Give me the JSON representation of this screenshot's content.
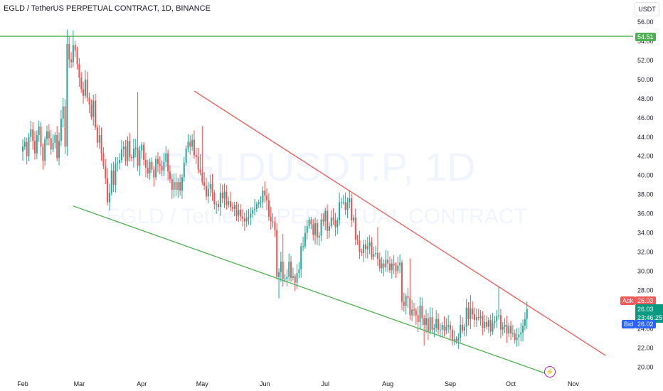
{
  "header": {
    "title": "EGLD / TetherUS PERPETUAL CONTRACT, 1D, BINANCE",
    "currency_button": "USDT"
  },
  "watermark": {
    "symbol": "EGLDUSDT.P, 1D",
    "name": "EGLD / TetherUS PERPETUAL CONTRACT"
  },
  "price_tags": {
    "level": "54.51",
    "ask_label": "Ask",
    "ask_value": "26.03",
    "last_value": "26.03",
    "countdown": "23:46:25",
    "bid_label": "Bid",
    "bid_value": "26.02"
  },
  "colors": {
    "up": "#26a69a",
    "down": "#ef5350",
    "support": "#4caf50",
    "resistance": "#f05a5a",
    "level_line": "#4caf50",
    "bid": "#2962ff",
    "last": "#089981"
  },
  "icons": {
    "alert": "lightning-icon"
  },
  "chart_data": {
    "type": "candlestick",
    "title": "EGLD / TetherUS PERPETUAL CONTRACT, 1D, BINANCE",
    "ylim": [
      19.5,
      57.0
    ],
    "y_ticks": [
      "56.00",
      "54.00",
      "52.00",
      "50.00",
      "48.00",
      "46.00",
      "44.00",
      "42.00",
      "40.00",
      "38.00",
      "36.00",
      "34.00",
      "32.00",
      "30.00",
      "28.00",
      "26.00",
      "24.00",
      "22.00",
      "20.00"
    ],
    "x_ticks": [
      {
        "label": "Feb",
        "day": 0
      },
      {
        "label": "Mar",
        "day": 28
      },
      {
        "label": "Apr",
        "day": 59
      },
      {
        "label": "May",
        "day": 89
      },
      {
        "label": "Jun",
        "day": 120
      },
      {
        "label": "Jul",
        "day": 150
      },
      {
        "label": "Aug",
        "day": 181
      },
      {
        "label": "Sep",
        "day": 212
      },
      {
        "label": "Oct",
        "day": 242
      },
      {
        "label": "Nov",
        "day": 273
      }
    ],
    "horizontal_level": 54.51,
    "trendlines": [
      {
        "name": "resistance",
        "from": {
          "day": 85,
          "price": 48.8
        },
        "to": {
          "day": 289,
          "price": 21.2
        }
      },
      {
        "name": "support",
        "from": {
          "day": 25,
          "price": 36.8
        },
        "to": {
          "day": 261,
          "price": 19.2
        }
      }
    ],
    "last_price": 26.03,
    "closes": [
      43.0,
      43.5,
      42.0,
      44.0,
      44.8,
      43.6,
      42.3,
      44.2,
      45.1,
      43.0,
      41.5,
      43.8,
      44.6,
      43.9,
      42.7,
      43.4,
      44.2,
      41.8,
      43.6,
      45.9,
      47.2,
      43.0,
      53.7,
      52.1,
      51.8,
      53.6,
      53.0,
      51.6,
      50.2,
      49.0,
      48.3,
      50.0,
      48.1,
      47.4,
      46.1,
      47.8,
      45.0,
      43.4,
      44.2,
      42.3,
      41.0,
      39.7,
      37.2,
      38.2,
      40.5,
      39.0,
      41.2,
      41.3,
      41.6,
      42.7,
      43.0,
      41.5,
      43.6,
      41.9,
      41.8,
      42.8,
      42.9,
      41.0,
      42.6,
      43.2,
      41.6,
      40.8,
      40.2,
      41.4,
      40.6,
      39.8,
      41.7,
      41.2,
      41.0,
      40.5,
      41.4,
      42.3,
      40.4,
      39.6,
      38.5,
      39.3,
      38.5,
      39.3,
      38.4,
      39.8,
      41.3,
      42.8,
      43.5,
      43.0,
      43.7,
      42.1,
      41.9,
      40.6,
      40.3,
      39.3,
      38.9,
      37.8,
      38.6,
      39.1,
      38.2,
      37.0,
      37.0,
      36.7,
      38.2,
      37.6,
      38.3,
      36.9,
      37.3,
      36.7,
      36.5,
      36.9,
      35.8,
      36.4,
      35.7,
      35.5,
      35.2,
      35.6,
      35.6,
      36.0,
      36.4,
      36.5,
      37.0,
      37.2,
      37.2,
      38.4,
      37.9,
      37.4,
      35.7,
      35.2,
      35.1,
      34.3,
      29.4,
      29.9,
      31.0,
      29.2,
      29.2,
      29.4,
      31.0,
      29.3,
      29.5,
      28.8,
      29.8,
      30.2,
      32.6,
      32.6,
      34.0,
      34.7,
      35.4,
      34.9,
      33.8,
      35.0,
      33.5,
      33.7,
      35.4,
      35.2,
      36.3,
      34.2,
      34.7,
      35.6,
      35.3,
      34.6,
      35.3,
      37.2,
      37.2,
      37.2,
      36.4,
      37.2,
      37.6,
      35.3,
      35.6,
      33.3,
      33.2,
      32.0,
      31.9,
      32.8,
      32.3,
      32.6,
      33.0,
      31.5,
      31.8,
      31.9,
      31.3,
      30.3,
      30.8,
      30.4,
      31.2,
      30.8,
      30.1,
      30.8,
      30.6,
      30.0,
      30.6,
      30.9,
      26.8,
      26.4,
      27.4,
      27.2,
      25.4,
      26.0,
      25.9,
      25.4,
      24.7,
      26.4,
      25.1,
      24.4,
      25.1,
      23.7,
      25.2,
      23.9,
      24.1,
      25.0,
      23.9,
      23.9,
      24.4,
      23.8,
      24.2,
      24.4,
      23.9,
      22.8,
      22.9,
      22.7,
      23.1,
      24.4,
      23.8,
      24.2,
      26.2,
      25.0,
      26.1,
      25.5,
      24.9,
      25.2,
      25.1,
      25.3,
      24.1,
      24.7,
      24.2,
      24.9,
      23.7,
      24.6,
      24.8,
      25.3,
      25.4,
      23.9,
      24.2,
      24.4,
      23.5,
      24.3,
      23.5,
      23.5,
      22.8,
      23.1,
      23.4,
      23.6,
      24.3,
      25.0,
      26.03
    ]
  }
}
